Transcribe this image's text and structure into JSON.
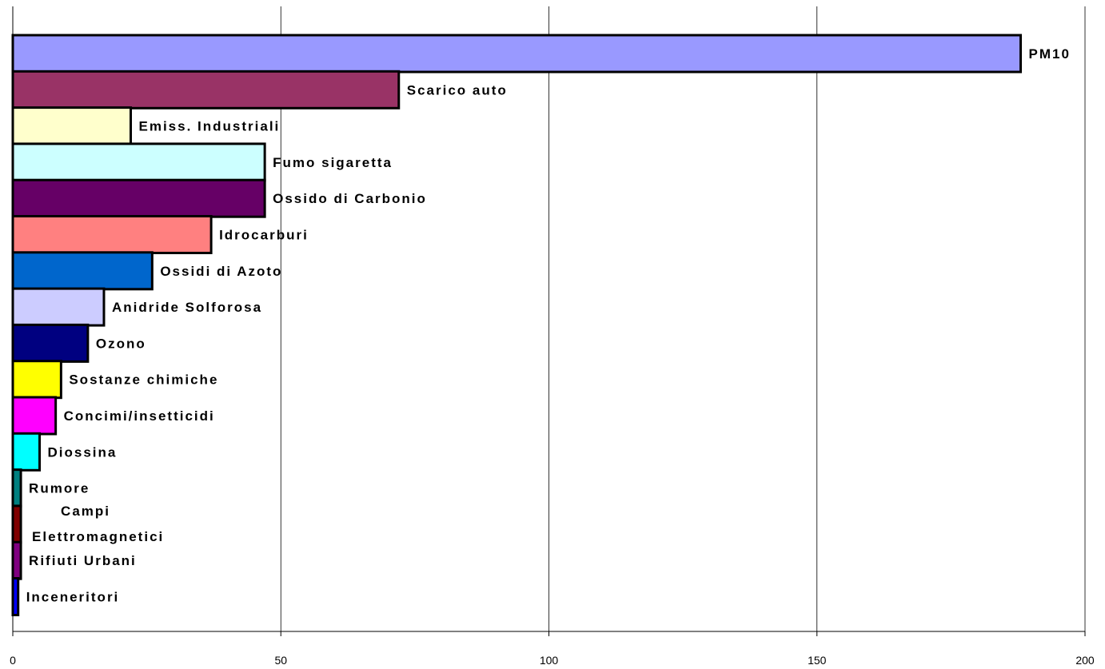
{
  "chart_data": {
    "type": "bar",
    "orientation": "horizontal",
    "title": "",
    "xlabel": "",
    "ylabel": "",
    "xlim": [
      0,
      200
    ],
    "x_ticks": [
      "0",
      "50",
      "100",
      "150",
      "200"
    ],
    "grid": true,
    "legend": "none",
    "categories": [
      "PM10",
      "Scarico auto",
      "Emiss. Industriali",
      "Fumo sigaretta",
      "Ossido di Carbonio",
      "Idrocarburi",
      "Ossidi di Azoto",
      "Anidride Solforosa",
      "Ozono",
      "Sostanze chimiche",
      "Concimi/insetticidi",
      "Diossina",
      "Rumore",
      "Campi Elettromagnetici",
      "Rifiuti Urbani",
      "Inceneritori"
    ],
    "values": [
      188,
      72,
      22,
      47,
      47,
      37,
      26,
      17,
      14,
      9,
      8,
      5,
      1.5,
      1.5,
      1.5,
      1
    ],
    "colors": [
      "#9999ff",
      "#993366",
      "#ffffcc",
      "#ccffff",
      "#660066",
      "#ff8080",
      "#0066cc",
      "#ccccff",
      "#000080",
      "#ffff00",
      "#ff00ff",
      "#00ffff",
      "#008080",
      "#800000",
      "#800080",
      "#0000ff"
    ]
  }
}
